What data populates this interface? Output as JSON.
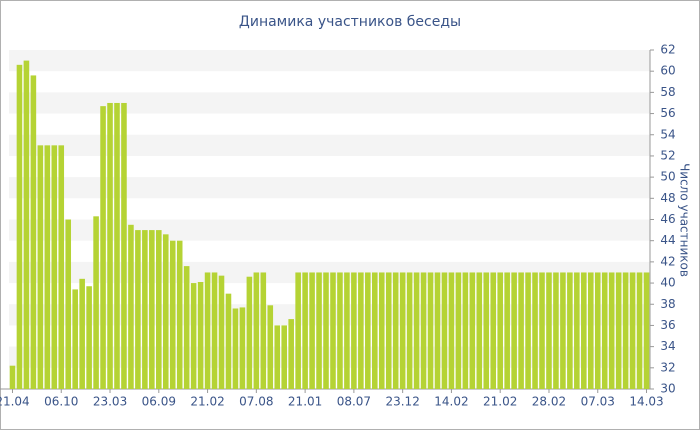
{
  "chart_data": {
    "type": "bar",
    "title": "Динамика участников беседы",
    "y_label": "Число участников",
    "categories": [
      "21.04",
      null,
      null,
      null,
      null,
      null,
      null,
      "06.10",
      null,
      null,
      null,
      null,
      null,
      null,
      "23.03",
      null,
      null,
      null,
      null,
      null,
      null,
      "06.09",
      null,
      null,
      null,
      null,
      null,
      null,
      "21.02",
      null,
      null,
      null,
      null,
      null,
      null,
      "07.08",
      null,
      null,
      null,
      null,
      null,
      null,
      "21.01",
      null,
      null,
      null,
      null,
      null,
      null,
      "08.07",
      null,
      null,
      null,
      null,
      null,
      null,
      "23.12",
      null,
      null,
      null,
      null,
      null,
      null,
      "14.02",
      null,
      null,
      null,
      null,
      null,
      null,
      "21.02",
      null,
      null,
      null,
      null,
      null,
      null,
      "28.02",
      null,
      null,
      null,
      null,
      null,
      null,
      "07.03",
      null,
      null,
      null,
      null,
      null,
      null,
      "14.03"
    ],
    "values": [
      32.2,
      60.6,
      61,
      59.6,
      53,
      53,
      53,
      53,
      46,
      39.4,
      40.4,
      39.7,
      46.3,
      56.7,
      57,
      57,
      57,
      45.5,
      45,
      45,
      45,
      45,
      44.6,
      44,
      44,
      41.6,
      40,
      40.1,
      41,
      41,
      40.7,
      39,
      37.6,
      37.7,
      40.6,
      41,
      41,
      37.9,
      36,
      36,
      36.6,
      41,
      41,
      41,
      41,
      41,
      41,
      41,
      41,
      41,
      41,
      41,
      41,
      41,
      41,
      41,
      41,
      41,
      41,
      41,
      41,
      41,
      41,
      41,
      41,
      41,
      41,
      41,
      41,
      41,
      41,
      41,
      41,
      41,
      41,
      41,
      41,
      41,
      41,
      41,
      41,
      41,
      41,
      41,
      41,
      41,
      41,
      41,
      41,
      41,
      41,
      41
    ],
    "color": "#b5d334",
    "ylim": [
      30,
      62
    ],
    "yticks": [
      30,
      32,
      34,
      36,
      38,
      40,
      42,
      44,
      46,
      48,
      50,
      52,
      54,
      56,
      58,
      60,
      62
    ],
    "grid": true
  }
}
